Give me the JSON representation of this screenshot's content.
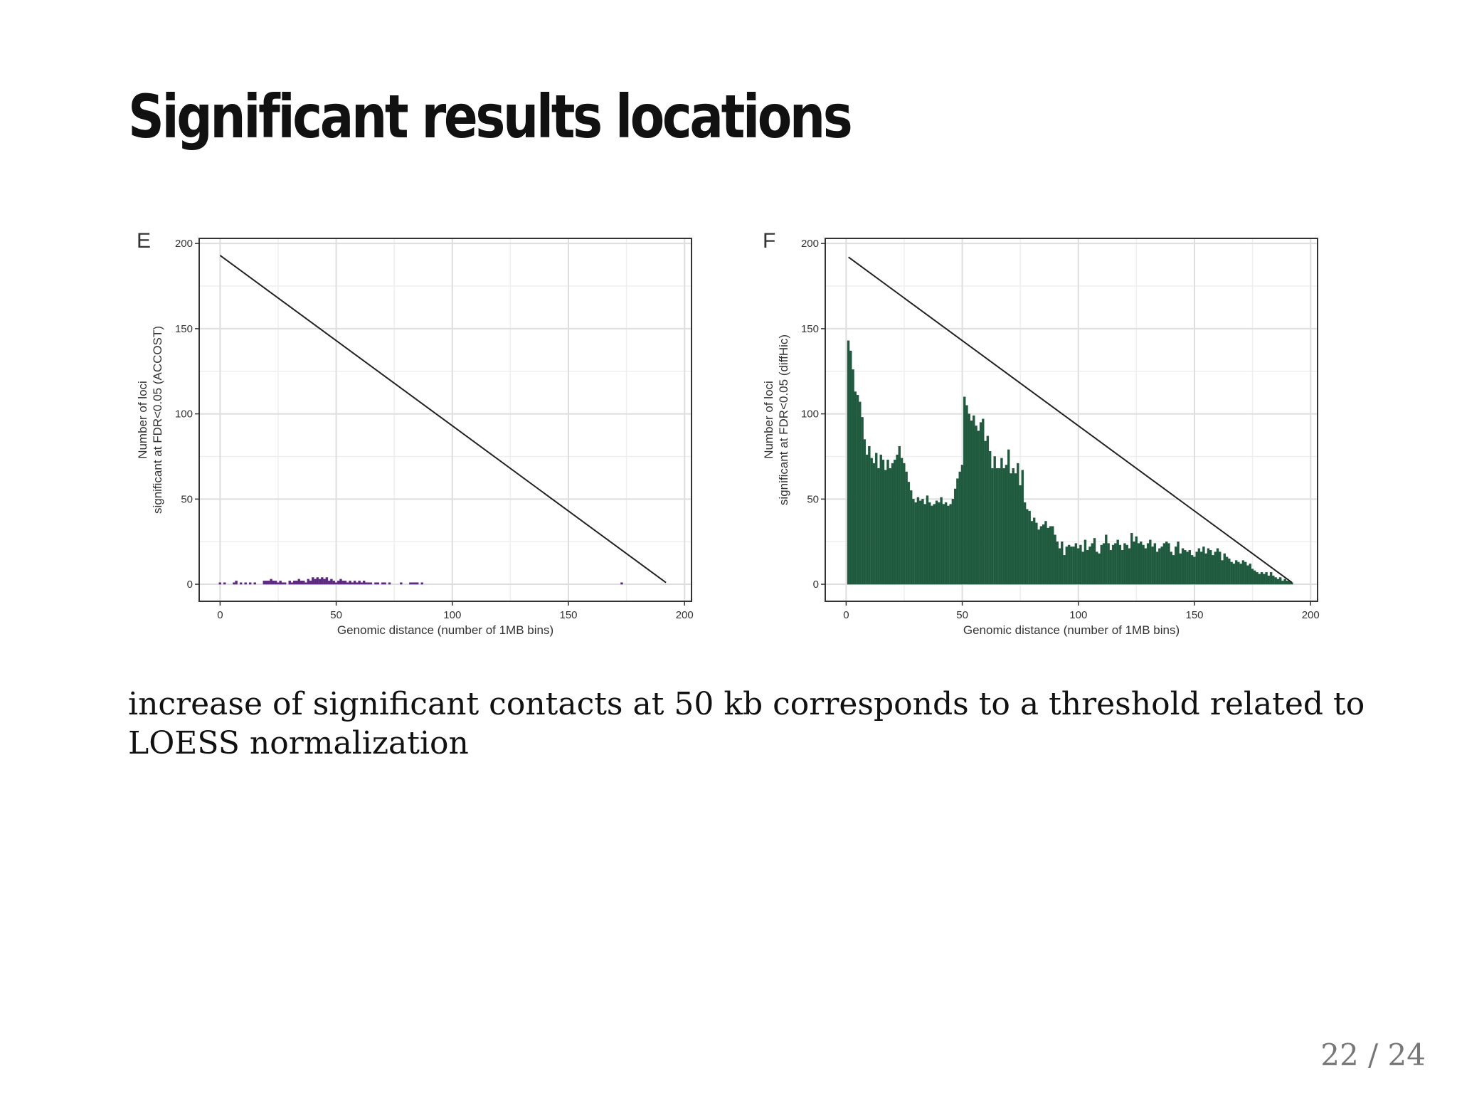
{
  "slide": {
    "title": "Significant results locations",
    "body_text": "increase of significant contacts at 50 kb corresponds to a threshold related to LOESS normalization",
    "page_number": "22 / 24"
  },
  "chart_data": [
    {
      "type": "bar",
      "panel_label": "E",
      "xlabel": "Genomic distance (number of 1MB bins)",
      "ylabel_line1": "Number of loci",
      "ylabel_line2": "significant at FDR<0.05 (ACCOST)",
      "xlim": [
        -9,
        203
      ],
      "ylim": [
        -10,
        203
      ],
      "xticks": [
        0,
        50,
        100,
        150,
        200
      ],
      "yticks": [
        0,
        50,
        100,
        150,
        200
      ],
      "grid": true,
      "bar_color": "#5b2a7e",
      "reference_line": {
        "x": [
          0,
          192
        ],
        "y": [
          193,
          1
        ],
        "color": "#222222"
      },
      "bars": [
        {
          "x": 0,
          "y": 1
        },
        {
          "x": 2,
          "y": 1
        },
        {
          "x": 6,
          "y": 1
        },
        {
          "x": 7,
          "y": 2
        },
        {
          "x": 9,
          "y": 1
        },
        {
          "x": 11,
          "y": 1
        },
        {
          "x": 13,
          "y": 1
        },
        {
          "x": 15,
          "y": 1
        },
        {
          "x": 19,
          "y": 2
        },
        {
          "x": 20,
          "y": 2
        },
        {
          "x": 21,
          "y": 2
        },
        {
          "x": 22,
          "y": 3
        },
        {
          "x": 23,
          "y": 2
        },
        {
          "x": 24,
          "y": 2
        },
        {
          "x": 25,
          "y": 1
        },
        {
          "x": 26,
          "y": 2
        },
        {
          "x": 27,
          "y": 1
        },
        {
          "x": 28,
          "y": 1
        },
        {
          "x": 30,
          "y": 2
        },
        {
          "x": 31,
          "y": 1
        },
        {
          "x": 32,
          "y": 2
        },
        {
          "x": 33,
          "y": 2
        },
        {
          "x": 34,
          "y": 3
        },
        {
          "x": 35,
          "y": 2
        },
        {
          "x": 36,
          "y": 2
        },
        {
          "x": 37,
          "y": 1
        },
        {
          "x": 38,
          "y": 3
        },
        {
          "x": 39,
          "y": 2
        },
        {
          "x": 40,
          "y": 4
        },
        {
          "x": 41,
          "y": 3
        },
        {
          "x": 42,
          "y": 4
        },
        {
          "x": 43,
          "y": 3
        },
        {
          "x": 44,
          "y": 4
        },
        {
          "x": 45,
          "y": 3
        },
        {
          "x": 46,
          "y": 4
        },
        {
          "x": 47,
          "y": 2
        },
        {
          "x": 48,
          "y": 3
        },
        {
          "x": 49,
          "y": 2
        },
        {
          "x": 50,
          "y": 1
        },
        {
          "x": 51,
          "y": 2
        },
        {
          "x": 52,
          "y": 3
        },
        {
          "x": 53,
          "y": 2
        },
        {
          "x": 54,
          "y": 2
        },
        {
          "x": 55,
          "y": 1
        },
        {
          "x": 56,
          "y": 2
        },
        {
          "x": 57,
          "y": 1
        },
        {
          "x": 58,
          "y": 2
        },
        {
          "x": 59,
          "y": 1
        },
        {
          "x": 60,
          "y": 2
        },
        {
          "x": 61,
          "y": 1
        },
        {
          "x": 62,
          "y": 2
        },
        {
          "x": 63,
          "y": 1
        },
        {
          "x": 64,
          "y": 1
        },
        {
          "x": 65,
          "y": 1
        },
        {
          "x": 67,
          "y": 1
        },
        {
          "x": 68,
          "y": 1
        },
        {
          "x": 70,
          "y": 1
        },
        {
          "x": 71,
          "y": 1
        },
        {
          "x": 73,
          "y": 1
        },
        {
          "x": 78,
          "y": 1
        },
        {
          "x": 82,
          "y": 1
        },
        {
          "x": 83,
          "y": 1
        },
        {
          "x": 84,
          "y": 1
        },
        {
          "x": 85,
          "y": 1
        },
        {
          "x": 87,
          "y": 1
        },
        {
          "x": 173,
          "y": 1
        }
      ]
    },
    {
      "type": "bar",
      "panel_label": "F",
      "xlabel": "Genomic distance (number of 1MB bins)",
      "ylabel_line1": "Number of loci",
      "ylabel_line2": "significant at FDR<0.05 (diffHic)",
      "xlim": [
        -9,
        203
      ],
      "ylim": [
        -10,
        203
      ],
      "xticks": [
        0,
        50,
        100,
        150,
        200
      ],
      "yticks": [
        0,
        50,
        100,
        150,
        200
      ],
      "grid": true,
      "bar_color": "#1f5a3e",
      "reference_line": {
        "x": [
          1,
          192
        ],
        "y": [
          192,
          1
        ],
        "color": "#222222"
      },
      "bars_start_x": 1,
      "bar_values": [
        143,
        137,
        126,
        113,
        111,
        107,
        98,
        85,
        76,
        81,
        74,
        71,
        77,
        68,
        76,
        73,
        67,
        73,
        68,
        71,
        73,
        76,
        81,
        74,
        71,
        66,
        60,
        55,
        50,
        48,
        51,
        49,
        50,
        47,
        52,
        48,
        46,
        47,
        49,
        48,
        51,
        47,
        48,
        46,
        47,
        50,
        56,
        62,
        66,
        70,
        110,
        105,
        100,
        96,
        99,
        93,
        90,
        95,
        97,
        84,
        87,
        78,
        68,
        75,
        68,
        68,
        74,
        68,
        70,
        79,
        65,
        68,
        65,
        71,
        58,
        67,
        48,
        44,
        43,
        37,
        39,
        36,
        32,
        34,
        35,
        37,
        33,
        34,
        34,
        29,
        25,
        21,
        25,
        17,
        22,
        23,
        22,
        22,
        24,
        21,
        23,
        19,
        26,
        20,
        22,
        24,
        27,
        19,
        18,
        23,
        24,
        29,
        24,
        20,
        23,
        24,
        26,
        23,
        20,
        24,
        23,
        21,
        30,
        25,
        28,
        24,
        25,
        23,
        21,
        24,
        26,
        22,
        24,
        19,
        21,
        22,
        24,
        25,
        24,
        19,
        17,
        22,
        25,
        18,
        21,
        20,
        19,
        20,
        17,
        16,
        19,
        21,
        19,
        22,
        18,
        21,
        20,
        17,
        19,
        21,
        19,
        14,
        18,
        16,
        15,
        13,
        12,
        14,
        13,
        12,
        14,
        13,
        11,
        12,
        9,
        8,
        7,
        6,
        7,
        6,
        7,
        5,
        7,
        5,
        4,
        3,
        4,
        2,
        3,
        2,
        2,
        1
      ]
    }
  ]
}
